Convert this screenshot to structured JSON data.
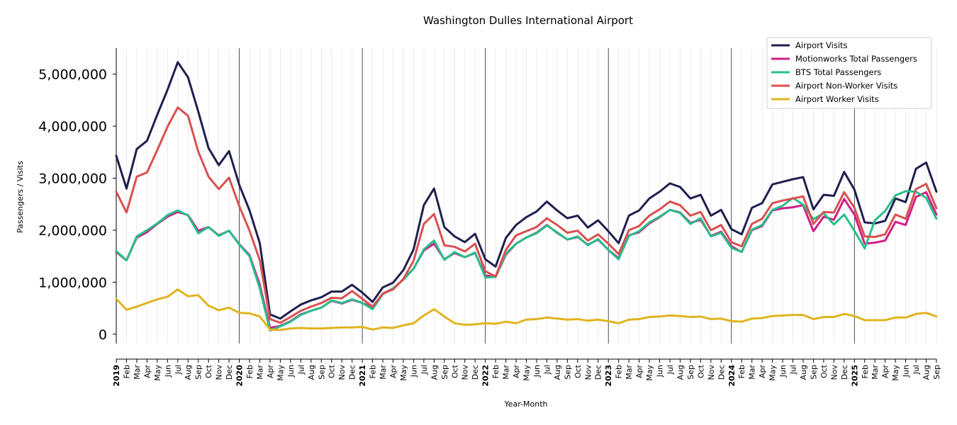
{
  "chart_data": {
    "type": "line",
    "title": "Washington Dulles International Airport",
    "xlabel": "Year-Month",
    "ylabel": "Passengers / Visits",
    "ylim": [
      -180000,
      5500000
    ],
    "yticks": [
      0,
      1000000,
      2000000,
      3000000,
      4000000,
      5000000
    ],
    "ytick_labels": [
      "0",
      "1,000,000",
      "2,000,000",
      "3,000,000",
      "4,000,000",
      "5,000,000"
    ],
    "grid": "vertical monthly gridlines; darker line at each year start",
    "legend_position": "top-right",
    "x": [
      "2019-01",
      "2019-02",
      "2019-03",
      "2019-04",
      "2019-05",
      "2019-06",
      "2019-07",
      "2019-08",
      "2019-09",
      "2019-10",
      "2019-11",
      "2019-12",
      "2020-01",
      "2020-02",
      "2020-03",
      "2020-04",
      "2020-05",
      "2020-06",
      "2020-07",
      "2020-08",
      "2020-09",
      "2020-10",
      "2020-11",
      "2020-12",
      "2021-01",
      "2021-02",
      "2021-03",
      "2021-04",
      "2021-05",
      "2021-06",
      "2021-07",
      "2021-08",
      "2021-09",
      "2021-10",
      "2021-11",
      "2021-12",
      "2022-01",
      "2022-02",
      "2022-03",
      "2022-04",
      "2022-05",
      "2022-06",
      "2022-07",
      "2022-08",
      "2022-09",
      "2022-10",
      "2022-11",
      "2022-12",
      "2023-01",
      "2023-02",
      "2023-03",
      "2023-04",
      "2023-05",
      "2023-06",
      "2023-07",
      "2023-08",
      "2023-09",
      "2023-10",
      "2023-11",
      "2023-12",
      "2024-01",
      "2024-02",
      "2024-03",
      "2024-04",
      "2024-05",
      "2024-06",
      "2024-07",
      "2024-08",
      "2024-09",
      "2024-10",
      "2024-11",
      "2024-12",
      "2025-01",
      "2025-02",
      "2025-03",
      "2025-04",
      "2025-05",
      "2025-06",
      "2025-07",
      "2025-08",
      "2025-09"
    ],
    "x_tick_labels": [
      "2019",
      "Feb",
      "Mar",
      "Apr",
      "May",
      "Jun",
      "Jul",
      "Aug",
      "Sep",
      "Oct",
      "Nov",
      "Dec",
      "2020",
      "Feb",
      "Mar",
      "Apr",
      "May",
      "Jun",
      "Jul",
      "Aug",
      "Sep",
      "Oct",
      "Nov",
      "Dec",
      "2021",
      "Feb",
      "Mar",
      "Apr",
      "May",
      "Jun",
      "Jul",
      "Aug",
      "Sep",
      "Oct",
      "Nov",
      "Dec",
      "2022",
      "Feb",
      "Mar",
      "Apr",
      "May",
      "Jun",
      "Jul",
      "Aug",
      "Sep",
      "Oct",
      "Nov",
      "Dec",
      "2023",
      "Feb",
      "Mar",
      "Apr",
      "May",
      "Jun",
      "Jul",
      "Aug",
      "Sep",
      "Oct",
      "Nov",
      "Dec",
      "2024",
      "Feb",
      "Mar",
      "Apr",
      "May",
      "Jun",
      "Jul",
      "Aug",
      "Sep",
      "Oct",
      "Nov",
      "Dec",
      "2025",
      "Feb",
      "Mar",
      "Apr",
      "May",
      "Jun",
      "Jul",
      "Aug",
      "Sep"
    ],
    "series": [
      {
        "name": "Airport Visits",
        "color": "#1f1f4f",
        "values": [
          3430000,
          2800000,
          3560000,
          3720000,
          4220000,
          4700000,
          5230000,
          4940000,
          4280000,
          3580000,
          3250000,
          3520000,
          2870000,
          2380000,
          1750000,
          380000,
          300000,
          440000,
          570000,
          650000,
          710000,
          820000,
          820000,
          950000,
          800000,
          620000,
          900000,
          990000,
          1230000,
          1630000,
          2480000,
          2800000,
          2060000,
          1880000,
          1770000,
          1930000,
          1440000,
          1300000,
          1850000,
          2100000,
          2250000,
          2360000,
          2550000,
          2380000,
          2230000,
          2280000,
          2050000,
          2190000,
          1980000,
          1750000,
          2280000,
          2380000,
          2610000,
          2740000,
          2900000,
          2830000,
          2610000,
          2680000,
          2280000,
          2390000,
          2020000,
          1920000,
          2430000,
          2520000,
          2880000,
          2930000,
          2980000,
          3020000,
          2400000,
          2680000,
          2660000,
          3120000,
          2780000,
          2150000,
          2130000,
          2180000,
          2610000,
          2540000,
          3180000,
          3300000,
          2740000
        ]
      },
      {
        "name": "Motionworks Total Passengers",
        "color": "#cf1f86",
        "values": [
          1580000,
          1420000,
          1860000,
          1960000,
          2120000,
          2260000,
          2350000,
          2290000,
          1990000,
          2060000,
          1900000,
          1990000,
          1730000,
          1520000,
          950000,
          120000,
          160000,
          250000,
          380000,
          450000,
          510000,
          640000,
          590000,
          660000,
          600000,
          520000,
          780000,
          880000,
          1050000,
          1260000,
          1610000,
          1740000,
          1440000,
          1560000,
          1480000,
          1560000,
          1130000,
          1100000,
          1530000,
          1740000,
          1860000,
          1950000,
          2100000,
          1950000,
          1820000,
          1870000,
          1720000,
          1820000,
          1620000,
          1460000,
          1900000,
          1960000,
          2130000,
          2250000,
          2390000,
          2340000,
          2140000,
          2200000,
          1890000,
          1970000,
          1690000,
          1580000,
          2000000,
          2080000,
          2380000,
          2420000,
          2440000,
          2480000,
          1980000,
          2260000,
          2200000,
          2600000,
          2300000,
          1740000,
          1760000,
          1800000,
          2160000,
          2100000,
          2640000,
          2730000,
          2300000
        ]
      },
      {
        "name": "BTS Total Passengers",
        "color": "#26bf8c",
        "values": [
          1600000,
          1420000,
          1880000,
          2000000,
          2130000,
          2290000,
          2380000,
          2280000,
          1940000,
          2060000,
          1890000,
          1990000,
          1720000,
          1500000,
          880000,
          70000,
          150000,
          240000,
          370000,
          450000,
          510000,
          650000,
          600000,
          670000,
          600000,
          480000,
          770000,
          880000,
          1050000,
          1260000,
          1630000,
          1800000,
          1430000,
          1580000,
          1480000,
          1570000,
          1090000,
          1100000,
          1550000,
          1740000,
          1860000,
          1940000,
          2090000,
          1960000,
          1820000,
          1880000,
          1710000,
          1830000,
          1620000,
          1440000,
          1890000,
          1980000,
          2150000,
          2260000,
          2390000,
          2330000,
          2120000,
          2230000,
          1880000,
          1950000,
          1660000,
          1580000,
          2010000,
          2100000,
          2390000,
          2470000,
          2620000,
          2490000,
          2210000,
          2330000,
          2110000,
          2300000,
          1990000,
          1650000,
          2190000,
          2370000,
          2670000,
          2750000,
          2740000,
          2620000,
          2220000
        ]
      },
      {
        "name": "Airport Non-Worker Visits",
        "color": "#d95050",
        "values": [
          2740000,
          2340000,
          3030000,
          3110000,
          3540000,
          3990000,
          4360000,
          4200000,
          3510000,
          3030000,
          2790000,
          3010000,
          2460000,
          1990000,
          1420000,
          290000,
          220000,
          330000,
          450000,
          530000,
          600000,
          700000,
          690000,
          830000,
          680000,
          530000,
          780000,
          860000,
          1060000,
          1410000,
          2120000,
          2310000,
          1710000,
          1680000,
          1590000,
          1740000,
          1210000,
          1110000,
          1620000,
          1900000,
          1980000,
          2060000,
          2230000,
          2100000,
          1950000,
          1990000,
          1800000,
          1920000,
          1740000,
          1540000,
          2000000,
          2080000,
          2280000,
          2400000,
          2550000,
          2480000,
          2280000,
          2350000,
          2000000,
          2100000,
          1770000,
          1690000,
          2120000,
          2220000,
          2520000,
          2570000,
          2610000,
          2650000,
          2120000,
          2350000,
          2340000,
          2730000,
          2430000,
          1880000,
          1870000,
          1920000,
          2300000,
          2220000,
          2790000,
          2890000,
          2420000
        ]
      },
      {
        "name": "Airport Worker Visits",
        "color": "#e0b41f",
        "values": [
          680000,
          470000,
          530000,
          600000,
          670000,
          720000,
          860000,
          730000,
          750000,
          550000,
          460000,
          510000,
          410000,
          400000,
          340000,
          90000,
          80000,
          110000,
          120000,
          110000,
          110000,
          120000,
          130000,
          130000,
          140000,
          90000,
          130000,
          120000,
          170000,
          210000,
          360000,
          480000,
          340000,
          210000,
          180000,
          190000,
          210000,
          200000,
          240000,
          210000,
          280000,
          290000,
          320000,
          300000,
          280000,
          290000,
          260000,
          280000,
          250000,
          210000,
          280000,
          290000,
          330000,
          340000,
          360000,
          350000,
          330000,
          340000,
          290000,
          300000,
          250000,
          240000,
          300000,
          310000,
          350000,
          360000,
          370000,
          370000,
          290000,
          330000,
          330000,
          390000,
          350000,
          270000,
          270000,
          270000,
          320000,
          320000,
          390000,
          410000,
          340000
        ]
      }
    ]
  }
}
